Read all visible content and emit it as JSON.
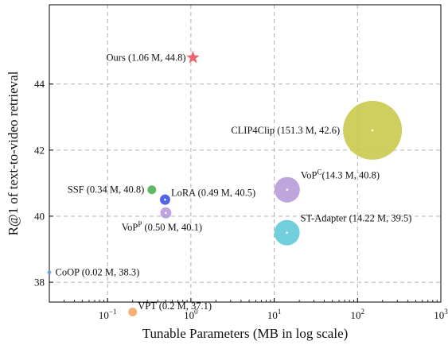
{
  "chart_data": {
    "type": "scatter",
    "title": "",
    "xlabel": "Tunable Parameters (MB in log scale)",
    "ylabel": "R@1 of text-to-video retrieval",
    "x_scale": "log",
    "xlim": [
      0.02,
      1000
    ],
    "ylim": [
      37.4,
      46.4
    ],
    "grid": true,
    "legend": "none",
    "x_ticks": [
      {
        "value": 0.1,
        "base": "10",
        "exp": "−1"
      },
      {
        "value": 1,
        "base": "10",
        "exp": "0"
      },
      {
        "value": 10,
        "base": "10",
        "exp": "1"
      },
      {
        "value": 100,
        "base": "10",
        "exp": "2"
      },
      {
        "value": 1000,
        "base": "10",
        "exp": "3"
      }
    ],
    "y_ticks": [
      {
        "value": 38,
        "label": "38"
      },
      {
        "value": 40,
        "label": "40"
      },
      {
        "value": 42,
        "label": "42"
      },
      {
        "value": 44,
        "label": "44"
      }
    ],
    "points": [
      {
        "name": "Ours",
        "label_text": "Ours (1.06 M, 44.8)",
        "x": 1.06,
        "y": 44.8,
        "marker": "star",
        "color": "#f0646e",
        "label_anchor": "end",
        "label_pos": "left"
      },
      {
        "name": "CLIP4Clip",
        "label_text": "CLIP4Clip (151.3 M, 42.6)",
        "x": 151.3,
        "y": 42.6,
        "marker": "circle",
        "color": "#c8c84a",
        "label_anchor": "end",
        "label_pos": "left"
      },
      {
        "name": "SSF",
        "label_text": "SSF (0.34 M, 40.8)",
        "x": 0.34,
        "y": 40.8,
        "marker": "circle",
        "color": "#4caf50",
        "label_anchor": "end",
        "label_pos": "left"
      },
      {
        "name": "LoRA",
        "label_text": "LoRA (0.49 M, 40.5)",
        "x": 0.49,
        "y": 40.5,
        "marker": "circle",
        "color": "#3b4de8",
        "label_anchor": "start",
        "label_pos": "upper-right"
      },
      {
        "name": "VoP^P",
        "label_main": "VoP",
        "label_sup": "P",
        "label_rest": " (0.50 M, 40.1)",
        "x": 0.5,
        "y": 40.1,
        "marker": "circle",
        "color": "#b59ad8",
        "label_anchor": "middle",
        "label_pos": "below"
      },
      {
        "name": "VoP^C",
        "label_main": "VoP",
        "label_sup": "C",
        "label_rest": "(14.3 M, 40.8)",
        "x": 14.3,
        "y": 40.8,
        "marker": "circle",
        "color": "#b59ad8",
        "label_anchor": "start",
        "label_pos": "upper-right"
      },
      {
        "name": "ST-Adapter",
        "label_text": "ST-Adapter (14.22 M, 39.5)",
        "x": 14.22,
        "y": 39.5,
        "marker": "circle",
        "color": "#5cc8d6",
        "label_anchor": "start",
        "label_pos": "upper-right"
      },
      {
        "name": "CoOP",
        "label_text": "CoOP (0.02 M, 38.3)",
        "x": 0.02,
        "y": 38.3,
        "marker": "circle",
        "color": "#6a9fd8",
        "label_anchor": "start",
        "label_pos": "right"
      },
      {
        "name": "VPT",
        "label_text": "VPT (0.2 M, 37.1)",
        "x": 0.2,
        "y": 37.1,
        "marker": "circle",
        "color": "#f4a460",
        "label_anchor": "start",
        "label_pos": "upper-right"
      }
    ]
  }
}
